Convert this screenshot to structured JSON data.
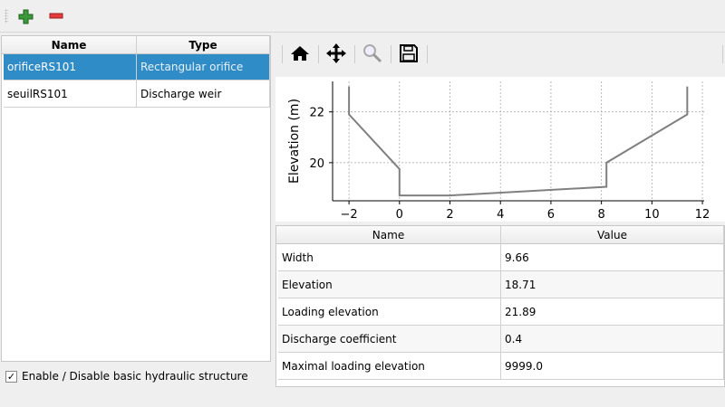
{
  "toolbar": {
    "add_icon": "plus-icon",
    "remove_icon": "minus-icon"
  },
  "structures": {
    "headers": [
      "Name",
      "Type"
    ],
    "rows": [
      {
        "name": "orificeRS101",
        "type": "Rectangular orifice",
        "selected": true
      },
      {
        "name": "seuilRS101",
        "type": "Discharge weir",
        "selected": false
      }
    ]
  },
  "enable_checkbox": {
    "label": "Enable / Disable basic hydraulic structure",
    "checked": true
  },
  "plot_toolbar": {
    "icons": [
      "home-icon",
      "pan-icon",
      "zoom-icon",
      "save-icon"
    ]
  },
  "chart_data": {
    "type": "line",
    "xlabel": "",
    "ylabel": "Elevation (m)",
    "xlim": [
      -2.65,
      12.07
    ],
    "ylim": [
      18.5,
      23.2
    ],
    "xticks": [
      "−2",
      "0",
      "2",
      "4",
      "6",
      "8",
      "10",
      "12"
    ],
    "yticks": [
      "20",
      "22"
    ],
    "grid": true,
    "line_color": "#808080",
    "x": [
      -2,
      -2,
      0,
      0,
      2,
      8.2,
      8.2,
      11.4,
      11.4
    ],
    "y": [
      23.0,
      21.9,
      19.75,
      18.71,
      18.71,
      19.05,
      20.0,
      21.9,
      23.0
    ]
  },
  "params": {
    "headers": [
      "Name",
      "Value"
    ],
    "rows": [
      {
        "name": "Width",
        "value": "9.66"
      },
      {
        "name": "Elevation",
        "value": "18.71"
      },
      {
        "name": "Loading elevation",
        "value": "21.89"
      },
      {
        "name": "Discharge coefficient",
        "value": "0.4"
      },
      {
        "name": "Maximal loading elevation",
        "value": "9999.0"
      }
    ]
  }
}
